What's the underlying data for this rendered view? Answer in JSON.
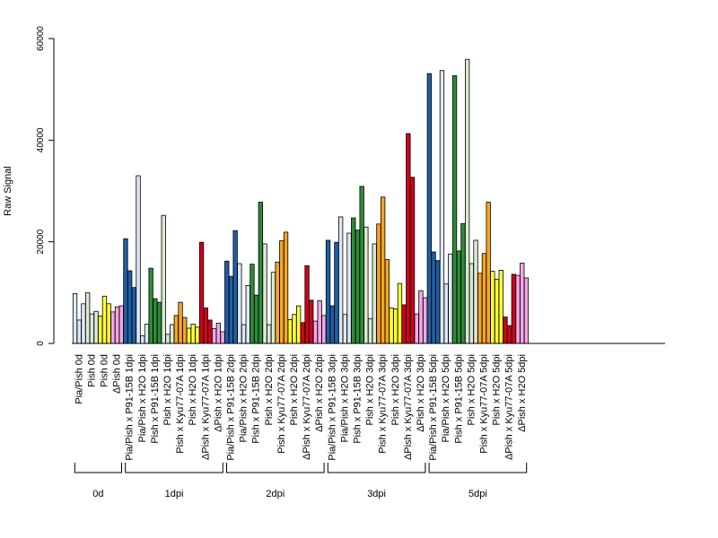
{
  "chart_data": {
    "type": "bar",
    "ylabel": "Raw Signal",
    "ylim": [
      0,
      60000
    ],
    "yticks": [
      0,
      20000,
      40000,
      60000
    ],
    "bars_per_category": 3,
    "grid": false,
    "categories": [
      {
        "label": "Pia/Pish 0d",
        "color": "#dce8f7",
        "values": [
          9800,
          4600,
          7800
        ]
      },
      {
        "label": "Pish 0d",
        "color": "#d9ead3",
        "values": [
          10000,
          5800,
          6300
        ]
      },
      {
        "label": "Pish 0d",
        "color": "#ffff33",
        "values": [
          5400,
          9300,
          7800
        ]
      },
      {
        "label": "ΔPish 0d",
        "color": "#f5a6e6",
        "values": [
          6200,
          7200,
          7400
        ]
      },
      {
        "label": "Pia/Pish x P91-15B 1dpi",
        "color": "#1f5fa6",
        "values": [
          20600,
          14300,
          11000
        ]
      },
      {
        "label": "Pia/Pish x H2O 1dpi",
        "color": "#dce8f7",
        "values": [
          33000,
          1500,
          3800
        ]
      },
      {
        "label": "Pish x P91-15B 1dpi",
        "color": "#2e8b3a",
        "values": [
          14800,
          8800,
          8100
        ]
      },
      {
        "label": "Pish x H2O 1dpi",
        "color": "#d9ead3",
        "values": [
          25200,
          1800,
          3700
        ]
      },
      {
        "label": "Pish x Kyu77-07A 1dpi",
        "color": "#f5a623",
        "values": [
          5500,
          8100,
          5100
        ]
      },
      {
        "label": "Pish x H2O 1dpi",
        "color": "#ffff33",
        "values": [
          3000,
          3800,
          3200
        ]
      },
      {
        "label": "ΔPish x Kyu77-07A 1dpi",
        "color": "#d0021b",
        "values": [
          19900,
          7000,
          4600
        ]
      },
      {
        "label": "ΔPish x H2O 1dpi",
        "color": "#f5a6e6",
        "values": [
          2900,
          4000,
          2300
        ]
      },
      {
        "label": "Pia/Pish x P91-15B 2dpi",
        "color": "#1f5fa6",
        "values": [
          16200,
          13200,
          22200
        ]
      },
      {
        "label": "Pia/Pish x H2O 2dpi",
        "color": "#dce8f7",
        "values": [
          15700,
          3700,
          11400
        ]
      },
      {
        "label": "Pish x P91-15B 2dpi",
        "color": "#2e8b3a",
        "values": [
          15600,
          9500,
          27800
        ]
      },
      {
        "label": "Pish x H2O 2dpi",
        "color": "#d9ead3",
        "values": [
          19600,
          3700,
          14000
        ]
      },
      {
        "label": "Pish x Kyu77-07A 2dpi",
        "color": "#f5a623",
        "values": [
          16000,
          20200,
          21900
        ]
      },
      {
        "label": "Pish x H2O 2dpi",
        "color": "#ffff33",
        "values": [
          4700,
          5700,
          7400
        ]
      },
      {
        "label": "ΔPish x Kyu77-07A 2dpi",
        "color": "#d0021b",
        "values": [
          4100,
          15300,
          8500
        ]
      },
      {
        "label": "ΔPish x H2O 2dpi",
        "color": "#f5a6e6",
        "values": [
          4400,
          8400,
          5500
        ]
      },
      {
        "label": "Pia/Pish x P91-15B 3dpi",
        "color": "#1f5fa6",
        "values": [
          20300,
          7400,
          19900
        ]
      },
      {
        "label": "Pia/Pish x H2O 3dpi",
        "color": "#dce8f7",
        "values": [
          24900,
          5700,
          21700
        ]
      },
      {
        "label": "Pish x P91-15B 3dpi",
        "color": "#2e8b3a",
        "values": [
          24700,
          22300,
          30900
        ]
      },
      {
        "label": "Pish x H2O 3dpi",
        "color": "#d9ead3",
        "values": [
          22900,
          4900,
          19600
        ]
      },
      {
        "label": "Pish x Kyu77-07A 3dpi",
        "color": "#f5a623",
        "values": [
          23500,
          28800,
          16500
        ]
      },
      {
        "label": "Pish x H2O 3dpi",
        "color": "#ffff33",
        "values": [
          7000,
          6800,
          11800
        ]
      },
      {
        "label": "ΔPish x Kyu77-07A 3dpi",
        "color": "#d0021b",
        "values": [
          7600,
          41300,
          32700
        ]
      },
      {
        "label": "ΔPish x H2O 3dpi",
        "color": "#f5a6e6",
        "values": [
          5800,
          10400,
          9000
        ]
      },
      {
        "label": "Pia/Pish x P91-15B 5dpi",
        "color": "#1f5fa6",
        "values": [
          53100,
          18000,
          16300
        ]
      },
      {
        "label": "Pia/Pish x H2O 5dpi",
        "color": "#dce8f7",
        "values": [
          53700,
          11700,
          17600
        ]
      },
      {
        "label": "Pish x P91-15B 5dpi",
        "color": "#2e8b3a",
        "values": [
          52700,
          18200,
          23600
        ]
      },
      {
        "label": "Pish x H2O 5dpi",
        "color": "#d9ead3",
        "values": [
          55900,
          15700,
          20300
        ]
      },
      {
        "label": "Pish x Kyu77-07A 5dpi",
        "color": "#f5a623",
        "values": [
          13800,
          17700,
          27800
        ]
      },
      {
        "label": "Pish x H2O 5dpi",
        "color": "#ffff33",
        "values": [
          14200,
          12600,
          14400
        ]
      },
      {
        "label": "ΔPish x Kyu77-07A 5dpi",
        "color": "#d0021b",
        "values": [
          5200,
          3500,
          13600
        ]
      },
      {
        "label": "ΔPish x H2O 5dpi",
        "color": "#f5a6e6",
        "values": [
          13400,
          15800,
          12900
        ]
      }
    ],
    "groups": [
      {
        "label": "0d",
        "from": 0,
        "to": 3
      },
      {
        "label": "1dpi",
        "from": 4,
        "to": 11
      },
      {
        "label": "2dpi",
        "from": 12,
        "to": 19
      },
      {
        "label": "3dpi",
        "from": 20,
        "to": 27
      },
      {
        "label": "5dpi",
        "from": 28,
        "to": 35
      }
    ]
  }
}
